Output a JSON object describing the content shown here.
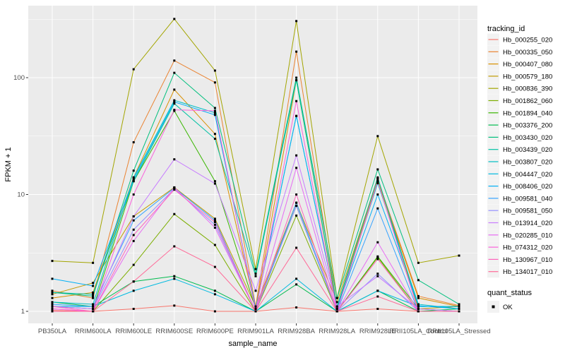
{
  "chart_data": {
    "type": "line",
    "title": "",
    "xlabel": "sample_name",
    "ylabel": "FPKM + 1",
    "y_scale": "log10",
    "ylim": [
      0.79,
      415
    ],
    "y_ticks": [
      "1",
      "10",
      "100"
    ],
    "y_tick_values": [
      1,
      10,
      100
    ],
    "grid": "white major and minor gridlines on gray panel",
    "legend_position": "right",
    "point_shape": "filled-black-square",
    "categories": [
      "PB350LA",
      "RRIM600LA",
      "RRIM600LE",
      "RRIM600SE",
      "RRIM600PE",
      "RRIM901LA",
      "RRIM928BA",
      "RRIM928LA",
      "RRIM928LE",
      "RRII105LA_Control",
      "RRII105LA_Stressed"
    ],
    "series": [
      {
        "name": "Hb_000255_020",
        "color": "#F8766D",
        "values": [
          1.02,
          1.0,
          1.05,
          1.12,
          1.0,
          1.0,
          1.08,
          1.0,
          1.05,
          1.0,
          1.0
        ]
      },
      {
        "name": "Hb_000335_050",
        "color": "#EA8331",
        "values": [
          1.5,
          1.3,
          28,
          140,
          91,
          1.1,
          167,
          1.1,
          13.5,
          1.35,
          1.12
        ]
      },
      {
        "name": "Hb_000407_080",
        "color": "#D89000",
        "values": [
          1.3,
          1.45,
          14,
          79,
          33,
          1.05,
          95,
          1.05,
          13,
          1.3,
          1.1
        ]
      },
      {
        "name": "Hb_000579_180",
        "color": "#C09B00",
        "values": [
          1.4,
          1.75,
          6.5,
          11.5,
          6.2,
          1.1,
          8.5,
          1.2,
          13.8,
          1.05,
          1.1
        ]
      },
      {
        "name": "Hb_000836_390",
        "color": "#A3A500",
        "values": [
          2.7,
          2.6,
          118,
          318,
          115,
          2.3,
          305,
          1.3,
          31.6,
          2.6,
          3.0
        ]
      },
      {
        "name": "Hb_001862_060",
        "color": "#7CAE00",
        "values": [
          1.0,
          1.0,
          2.5,
          6.8,
          3.7,
          1.0,
          6.6,
          1.0,
          2.9,
          1.0,
          1.0
        ]
      },
      {
        "name": "Hb_001894_040",
        "color": "#39B600",
        "values": [
          1.1,
          1.05,
          13,
          52,
          13,
          1.05,
          8.0,
          1.0,
          2.95,
          1.05,
          1.0
        ]
      },
      {
        "name": "Hb_003376_200",
        "color": "#00BB4E",
        "values": [
          1.2,
          1.1,
          1.8,
          2.0,
          1.5,
          1.0,
          1.7,
          1.0,
          1.5,
          1.0,
          1.05
        ]
      },
      {
        "name": "Hb_003430_020",
        "color": "#00BF7D",
        "values": [
          1.45,
          1.35,
          16,
          110,
          55,
          2.1,
          100,
          1.3,
          16.4,
          1.85,
          1.15
        ]
      },
      {
        "name": "Hb_003439_020",
        "color": "#00C1A3",
        "values": [
          1.45,
          1.4,
          13,
          60,
          30,
          2.0,
          95,
          1.1,
          14,
          1.1,
          1.1
        ]
      },
      {
        "name": "Hb_003807_020",
        "color": "#00BFC4",
        "values": [
          1.2,
          1.15,
          14,
          64,
          50,
          1.05,
          47,
          1.05,
          12.5,
          1.15,
          1.05
        ]
      },
      {
        "name": "Hb_004447_020",
        "color": "#00BAE0",
        "values": [
          1.1,
          1.1,
          1.5,
          1.9,
          1.4,
          1.0,
          1.9,
          1.0,
          1.5,
          1.1,
          1.1
        ]
      },
      {
        "name": "Hb_008406_020",
        "color": "#00B0F6",
        "values": [
          1.9,
          1.65,
          13.5,
          62,
          48,
          1.05,
          47,
          1.05,
          10,
          1.12,
          1.05
        ]
      },
      {
        "name": "Hb_009581_040",
        "color": "#35A2FF",
        "values": [
          1.15,
          1.1,
          6.0,
          11.4,
          6.0,
          1.0,
          8.5,
          1.0,
          7.6,
          1.0,
          1.0
        ]
      },
      {
        "name": "Hb_009581_050",
        "color": "#9590FF",
        "values": [
          1.1,
          1.05,
          5.0,
          11.2,
          5.5,
          1.0,
          8.0,
          1.0,
          2.1,
          1.0,
          1.0
        ]
      },
      {
        "name": "Hb_013914_020",
        "color": "#C77CFF",
        "values": [
          1.1,
          1.05,
          6.5,
          20,
          12.4,
          1.5,
          21.6,
          1.1,
          2.0,
          1.05,
          1.0
        ]
      },
      {
        "name": "Hb_020285_010",
        "color": "#E76BF3",
        "values": [
          1.05,
          1.0,
          4.0,
          11.5,
          5.2,
          1.0,
          16.9,
          1.0,
          3.9,
          1.0,
          1.0
        ]
      },
      {
        "name": "Hb_074312_020",
        "color": "#FA62DB",
        "values": [
          1.05,
          1.0,
          10,
          53,
          52,
          1.0,
          63,
          1.0,
          13,
          1.0,
          1.0
        ]
      },
      {
        "name": "Hb_130967_010",
        "color": "#FF62BC",
        "values": [
          1.1,
          1.0,
          4.5,
          11,
          5.8,
          1.0,
          10,
          1.0,
          2.8,
          1.0,
          1.0
        ]
      },
      {
        "name": "Hb_134017_010",
        "color": "#FF6A98",
        "values": [
          1.0,
          1.0,
          1.8,
          3.6,
          2.4,
          1.0,
          3.5,
          1.0,
          1.34,
          1.0,
          1.0
        ]
      }
    ]
  },
  "legend": {
    "color_title": "tracking_id",
    "shape_title": "quant_status",
    "shape_items": [
      {
        "label": "OK",
        "marker": "black-square"
      }
    ]
  },
  "theme": {
    "panel_bg": "#EBEBEB",
    "grid_color": "#FFFFFF",
    "tick_color": "#333333",
    "tick_label_color": "#4D4D4D",
    "text_color": "#000000",
    "legend_key_bg": "#F2F2F2",
    "point_color": "#000000"
  }
}
